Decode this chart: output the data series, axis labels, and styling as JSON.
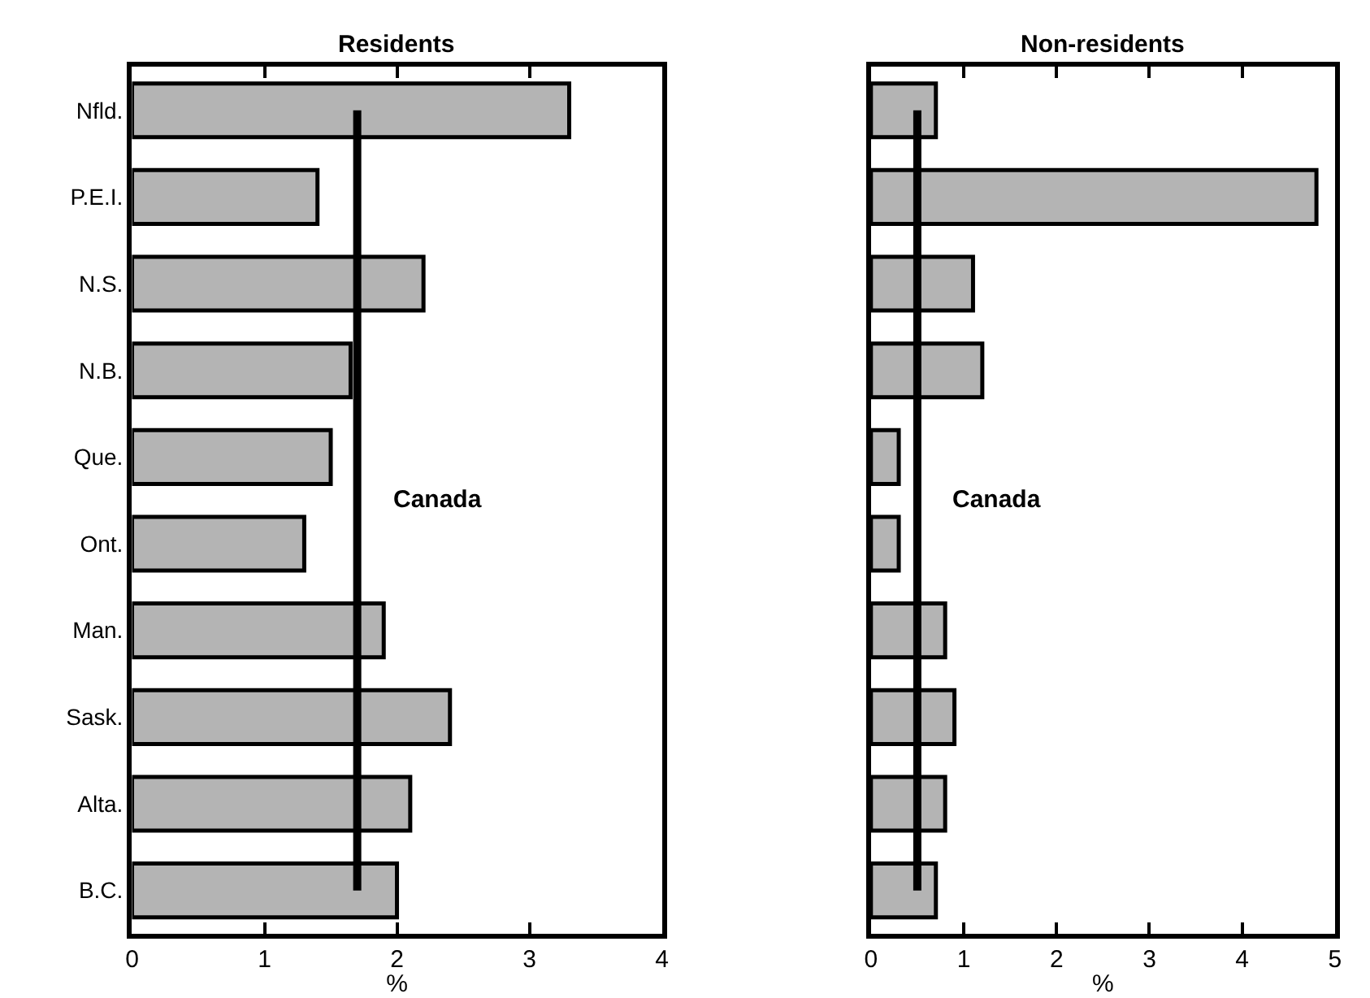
{
  "chart_data": [
    {
      "type": "bar",
      "title": "Residents",
      "xlabel": "%",
      "orientation": "horizontal",
      "categories": [
        "Nfld.",
        "P.E.I.",
        "N.S.",
        "N.B.",
        "Que.",
        "Ont.",
        "Man.",
        "Sask.",
        "Alta.",
        "B.C."
      ],
      "values": [
        3.3,
        1.4,
        2.2,
        1.65,
        1.5,
        1.3,
        1.9,
        2.4,
        2.1,
        2.0
      ],
      "color": "#b4b4b4",
      "xlim": [
        0,
        4
      ],
      "xticks": [
        0,
        1,
        2,
        3,
        4
      ],
      "ref_lines": [
        {
          "axis": "x",
          "value": 1.7,
          "label": "Canada",
          "color": "#000000"
        }
      ]
    },
    {
      "type": "bar",
      "title": "Non-residents",
      "xlabel": "%",
      "orientation": "horizontal",
      "categories": [
        null,
        null,
        null,
        null,
        null,
        null,
        null,
        null,
        null,
        null
      ],
      "values": [
        0.7,
        4.8,
        1.1,
        1.2,
        0.3,
        0.3,
        0.8,
        0.9,
        0.8,
        0.7
      ],
      "color": "#b4b4b4",
      "xlim": [
        0,
        5
      ],
      "xticks": [
        0,
        1,
        2,
        3,
        4,
        5
      ],
      "tick_labels": "x",
      "ref_lines": [
        {
          "axis": "x",
          "value": 0.5,
          "label": "Canada",
          "color": "#000000"
        }
      ]
    }
  ]
}
